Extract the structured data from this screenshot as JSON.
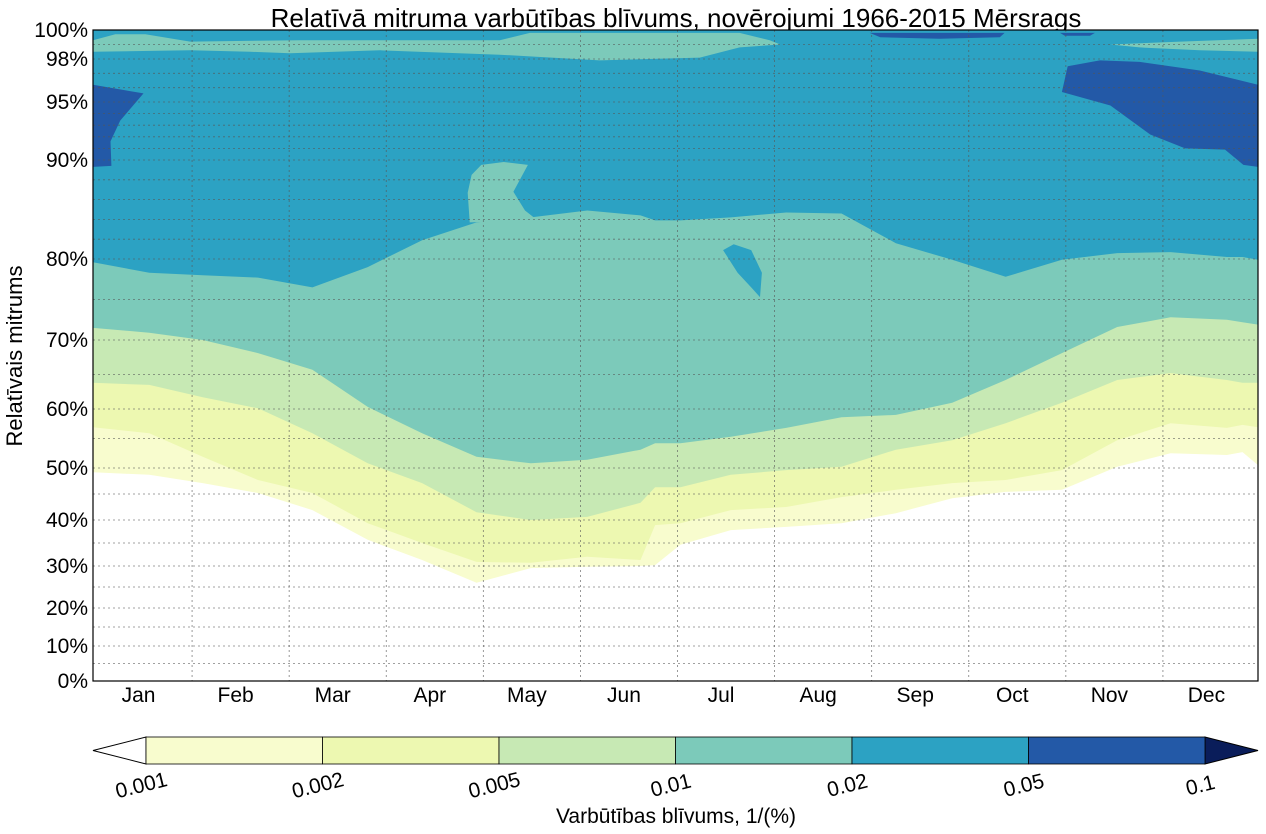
{
  "chart_data": {
    "type": "contourf",
    "title": "Relatīvā mitruma varbūtības blīvums, novērojumi 1966-2015 Mērsrags",
    "ylabel": "Relatīvais mitrums",
    "xlabel": "",
    "x_categories": [
      "Jan",
      "Feb",
      "Mar",
      "Apr",
      "May",
      "Jun",
      "Jul",
      "Aug",
      "Sep",
      "Oct",
      "Nov",
      "Dec"
    ],
    "xlim": [
      0,
      12
    ],
    "ylim": [
      0,
      100
    ],
    "y_ticks": [
      0,
      10,
      20,
      30,
      40,
      50,
      60,
      70,
      80,
      90,
      95,
      98,
      100
    ],
    "y_tick_labels": [
      "0%",
      "10%",
      "20%",
      "30%",
      "40%",
      "50%",
      "60%",
      "70%",
      "80%",
      "90%",
      "95%",
      "98%",
      "100%"
    ],
    "y_grid": [
      5,
      10,
      15,
      20,
      25,
      30,
      35,
      40,
      45,
      50,
      55,
      60,
      65,
      70,
      75,
      80,
      82,
      84,
      86,
      88,
      90,
      91,
      92,
      93,
      94,
      95,
      96,
      97,
      98,
      99
    ],
    "grid": true,
    "levels": [
      0.001,
      0.002,
      0.005,
      0.01,
      0.02,
      0.05,
      0.1
    ],
    "level_labels": [
      "0.001",
      "0.002",
      "0.005",
      "0.01",
      "0.02",
      "0.05",
      "0.1"
    ],
    "colors": [
      "#f8fcce",
      "#edf8b1",
      "#c7e9b4",
      "#7ccaba",
      "#2ca2c3",
      "#2359a7"
    ],
    "under_color": "#ffffff",
    "over_color": "#0a1d5a",
    "colorbar_label": "Varbūtības blīvums, 1/(%)",
    "boundary_x": [
      0,
      0.58,
      1.13,
      1.7,
      2.26,
      2.83,
      3.39,
      3.95,
      4.51,
      5.09,
      5.64,
      5.79,
      6.05,
      6.57,
      7.14,
      7.71,
      8.27,
      8.85,
      9.4,
      9.98,
      10.55,
      11.1,
      11.68,
      11.84,
      12
    ],
    "boundaries": [
      {
        "level": 0.001,
        "rh": [
          49.2,
          48.7,
          47.1,
          45.2,
          41.9,
          35.7,
          31.3,
          26.0,
          29.5,
          29.8,
          30.0,
          30.2,
          34.6,
          37.8,
          38.5,
          39.3,
          41.3,
          44.2,
          45.4,
          45.8,
          50.2,
          52.5,
          52.2,
          52.7,
          50.5
        ]
      },
      {
        "level": 0.002,
        "rh": [
          56.9,
          55.9,
          51.9,
          47.7,
          45.2,
          39.3,
          35.0,
          30.9,
          30.7,
          32.0,
          31.3,
          38.9,
          39.3,
          41.9,
          42.5,
          44.4,
          45.8,
          47.1,
          47.7,
          49.6,
          54.7,
          57.6,
          56.8,
          57.3,
          56.9
        ]
      },
      {
        "level": 0.005,
        "rh": [
          63.8,
          63.5,
          61.7,
          60.1,
          55.9,
          50.8,
          47.1,
          41.5,
          40.0,
          40.6,
          43.3,
          46.3,
          46.3,
          48.7,
          49.6,
          50.2,
          53.1,
          54.7,
          57.6,
          60.9,
          64.2,
          65.2,
          64.2,
          63.8,
          63.8
        ]
      },
      {
        "level": 0.01,
        "rh": [
          71.5,
          70.9,
          70.0,
          68.1,
          65.7,
          60.3,
          55.9,
          51.9,
          50.8,
          51.4,
          53.1,
          54.2,
          54.2,
          55.3,
          56.8,
          58.6,
          59.0,
          60.9,
          64.2,
          68.1,
          71.6,
          72.8,
          72.5,
          72.2,
          71.9
        ]
      },
      {
        "level": 0.02,
        "rh": [
          79.6,
          78.3,
          78.0,
          77.7,
          76.5,
          79.0,
          81.9,
          83.7,
          84.2,
          84.9,
          84.4,
          83.9,
          83.9,
          84.2,
          84.7,
          84.6,
          81.6,
          79.9,
          77.8,
          79.9,
          80.6,
          80.7,
          80.2,
          80.2,
          79.9
        ]
      }
    ],
    "patches": [
      {
        "level": 0.05,
        "points": [
          [
            0,
            96.2
          ],
          [
            0.52,
            95.6
          ],
          [
            0.28,
            93.4
          ],
          [
            0.18,
            91.6
          ],
          [
            0.19,
            89.4
          ],
          [
            0,
            89.3
          ]
        ]
      },
      {
        "level": 0.05,
        "points": [
          [
            10.04,
            97.5
          ],
          [
            10.37,
            97.9
          ],
          [
            10.78,
            97.8
          ],
          [
            11.4,
            97.2
          ],
          [
            12,
            96.2
          ],
          [
            12,
            89.3
          ],
          [
            11.85,
            89.5
          ],
          [
            11.66,
            90.9
          ],
          [
            11.25,
            91.0
          ],
          [
            10.89,
            92.2
          ],
          [
            10.48,
            94.7
          ],
          [
            9.98,
            95.7
          ]
        ]
      },
      {
        "level": 0.05,
        "points": [
          [
            8.0,
            99.8
          ],
          [
            9.39,
            99.8
          ],
          [
            9.34,
            99.5
          ],
          [
            8.72,
            99.4
          ],
          [
            8.11,
            99.5
          ]
        ]
      },
      {
        "level": 0.05,
        "points": [
          [
            9.96,
            99.8
          ],
          [
            10.32,
            99.8
          ],
          [
            10.27,
            99.6
          ],
          [
            10.01,
            99.6
          ]
        ]
      },
      {
        "level": 0.01,
        "points": [
          [
            3.88,
            83.7
          ],
          [
            3.86,
            86.7
          ],
          [
            3.9,
            88.5
          ],
          [
            4.0,
            89.5
          ],
          [
            4.23,
            89.8
          ],
          [
            4.48,
            89.5
          ],
          [
            4.33,
            86.8
          ],
          [
            4.45,
            84.9
          ],
          [
            4.58,
            83.9
          ]
        ]
      },
      {
        "level": 0.02,
        "points": [
          [
            6.49,
            80.9
          ],
          [
            6.6,
            81.5
          ],
          [
            6.78,
            80.9
          ],
          [
            6.89,
            78.3
          ],
          [
            6.87,
            75.3
          ],
          [
            6.78,
            76.5
          ],
          [
            6.64,
            78.3
          ]
        ]
      },
      {
        "level": 0.01,
        "points": [
          [
            0,
            99.3
          ],
          [
            0.23,
            99.7
          ],
          [
            0.54,
            99.7
          ],
          [
            1.0,
            99.2
          ],
          [
            2.13,
            99.3
          ],
          [
            4.19,
            99.3
          ],
          [
            4.5,
            99.8
          ],
          [
            6.66,
            99.8
          ],
          [
            6.97,
            99.3
          ],
          [
            7.08,
            99.0
          ],
          [
            6.66,
            98.8
          ],
          [
            6.25,
            98.1
          ],
          [
            5.22,
            97.9
          ],
          [
            4.19,
            98.3
          ],
          [
            2.96,
            98.6
          ],
          [
            2.03,
            98.4
          ],
          [
            1.62,
            98.5
          ],
          [
            1.0,
            98.6
          ],
          [
            0,
            98.5
          ]
        ]
      },
      {
        "level": 0.01,
        "points": [
          [
            10.48,
            99.0
          ],
          [
            11.2,
            99.2
          ],
          [
            12,
            99.4
          ],
          [
            12,
            98.5
          ],
          [
            11.4,
            98.6
          ],
          [
            10.78,
            98.8
          ]
        ]
      }
    ]
  }
}
